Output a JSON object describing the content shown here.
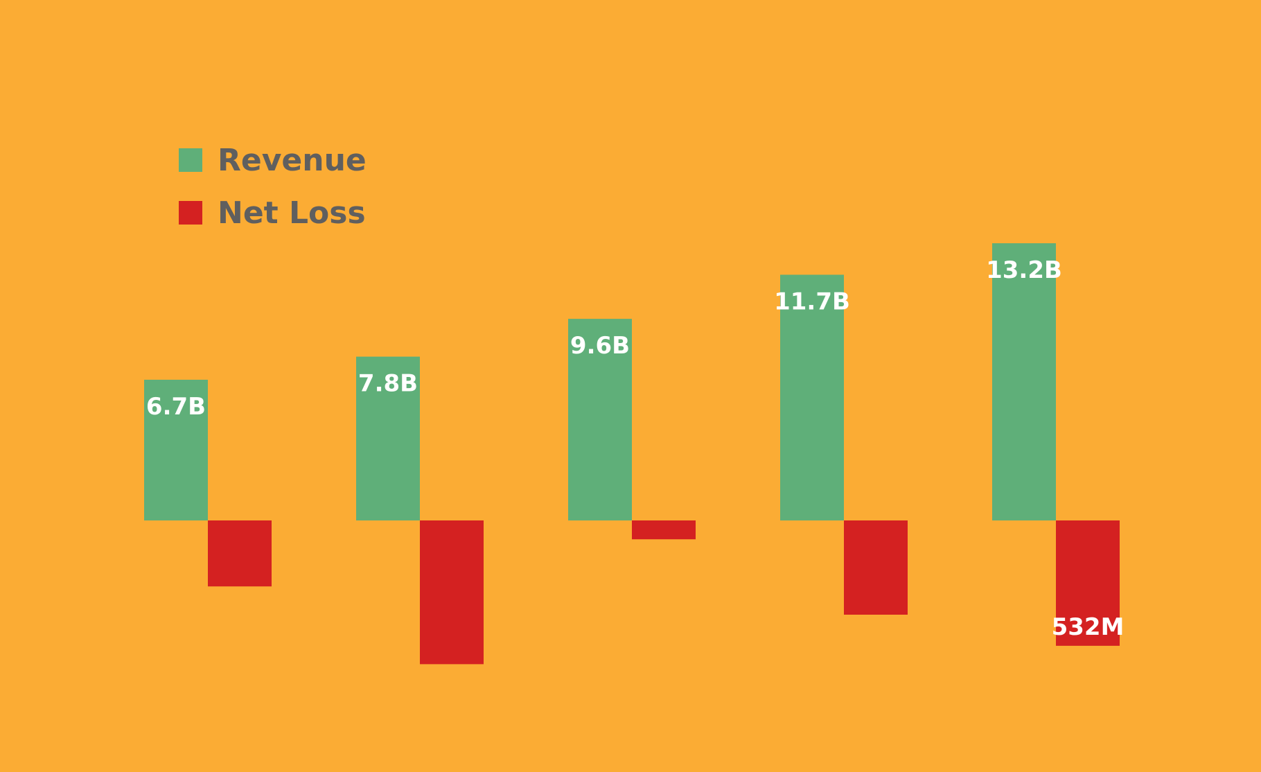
{
  "background_color": "#FBAC34",
  "chart_data": {
    "type": "bar",
    "title": "",
    "xlabel": "",
    "ylabel": "",
    "grid": false,
    "legend_placement": "top-left",
    "ylim": [
      -4.0,
      15.0
    ],
    "categories": [
      "",
      "",
      "",
      "",
      ""
    ],
    "series": [
      {
        "name": "Revenue",
        "color": "#5FAF79",
        "values": [
          6.7,
          7.8,
          9.6,
          11.7,
          13.2
        ],
        "labels": [
          "6.7B",
          "7.8B",
          "9.6B",
          "11.7B",
          "13.2B"
        ]
      },
      {
        "name": "Net Loss",
        "color": "#D42121",
        "values": [
          -0.28,
          -0.61,
          -0.08,
          -0.4,
          -0.532
        ],
        "labels": [
          "",
          "",
          "",
          "",
          "532M"
        ]
      }
    ]
  }
}
